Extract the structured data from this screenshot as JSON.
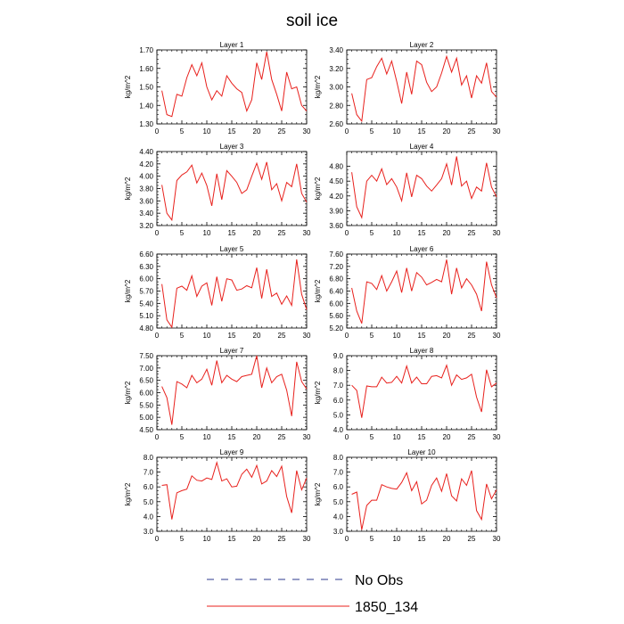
{
  "figure": {
    "title": "soil ice",
    "legend": [
      {
        "label": "No Obs",
        "color": "#2b3a8c",
        "dash": true
      },
      {
        "label": "1850_134",
        "color": "#e8201c",
        "dash": false
      }
    ]
  },
  "chart_data": [
    {
      "type": "line",
      "title": "Layer 1",
      "ylabel": "kg/m^2",
      "xlim": [
        0,
        30
      ],
      "xticks": [
        0,
        5,
        10,
        15,
        20,
        25,
        30
      ],
      "ylim": [
        1.3,
        1.7
      ],
      "yticks": [
        "1.30",
        "1.40",
        "1.50",
        "1.60",
        "1.70"
      ],
      "series": [
        {
          "color": "#e8201c",
          "x": [
            1,
            2,
            3,
            4,
            5,
            6,
            7,
            8,
            9,
            10,
            11,
            12,
            13,
            14,
            15,
            16,
            17,
            18,
            19,
            20,
            21,
            22,
            23,
            24,
            25,
            26,
            27,
            28,
            29,
            30
          ],
          "values": [
            1.48,
            1.35,
            1.34,
            1.46,
            1.45,
            1.55,
            1.62,
            1.56,
            1.63,
            1.5,
            1.43,
            1.48,
            1.45,
            1.56,
            1.52,
            1.49,
            1.47,
            1.37,
            1.43,
            1.63,
            1.54,
            1.69,
            1.54,
            1.46,
            1.37,
            1.58,
            1.49,
            1.5,
            1.4,
            1.37
          ]
        }
      ]
    },
    {
      "type": "line",
      "title": "Layer 2",
      "ylabel": "kg/m^2",
      "xlim": [
        0,
        30
      ],
      "xticks": [
        0,
        5,
        10,
        15,
        20,
        25,
        30
      ],
      "ylim": [
        2.6,
        3.4
      ],
      "yticks": [
        "2.60",
        "2.80",
        "3.00",
        "3.20",
        "3.40"
      ],
      "series": [
        {
          "color": "#e8201c",
          "x": [
            1,
            2,
            3,
            4,
            5,
            6,
            7,
            8,
            9,
            10,
            11,
            12,
            13,
            14,
            15,
            16,
            17,
            18,
            19,
            20,
            21,
            22,
            23,
            24,
            25,
            26,
            27,
            28,
            29,
            30
          ],
          "values": [
            2.93,
            2.7,
            2.63,
            3.08,
            3.1,
            3.22,
            3.31,
            3.14,
            3.28,
            3.06,
            2.82,
            3.16,
            2.92,
            3.28,
            3.24,
            3.05,
            2.95,
            3.0,
            3.15,
            3.33,
            3.16,
            3.31,
            3.02,
            3.12,
            2.88,
            3.12,
            3.04,
            3.26,
            2.95,
            2.89
          ]
        }
      ]
    },
    {
      "type": "line",
      "title": "Layer 3",
      "ylabel": "kg/m^2",
      "xlim": [
        0,
        30
      ],
      "xticks": [
        0,
        5,
        10,
        15,
        20,
        25,
        30
      ],
      "ylim": [
        3.2,
        4.4
      ],
      "yticks": [
        "3.20",
        "3.40",
        "3.60",
        "3.80",
        "4.00",
        "4.20",
        "4.40"
      ],
      "series": [
        {
          "color": "#e8201c",
          "x": [
            1,
            2,
            3,
            4,
            5,
            6,
            7,
            8,
            9,
            10,
            11,
            12,
            13,
            14,
            15,
            16,
            17,
            18,
            19,
            20,
            21,
            22,
            23,
            24,
            25,
            26,
            27,
            28,
            29,
            30
          ],
          "values": [
            3.86,
            3.4,
            3.29,
            3.93,
            4.02,
            4.07,
            4.18,
            3.89,
            4.05,
            3.85,
            3.52,
            4.04,
            3.62,
            4.09,
            4.0,
            3.9,
            3.72,
            3.78,
            4.0,
            4.21,
            3.95,
            4.23,
            3.78,
            3.88,
            3.6,
            3.9,
            3.83,
            4.2,
            3.72,
            3.58
          ]
        }
      ]
    },
    {
      "type": "line",
      "title": "Layer 4",
      "ylabel": "kg/m^2",
      "xlim": [
        0,
        30
      ],
      "xticks": [
        0,
        5,
        10,
        15,
        20,
        25,
        30
      ],
      "ylim": [
        3.6,
        5.1
      ],
      "yticks": [
        "3.60",
        "3.90",
        "4.20",
        "4.50",
        "4.80"
      ],
      "series": [
        {
          "color": "#e8201c",
          "x": [
            1,
            2,
            3,
            4,
            5,
            6,
            7,
            8,
            9,
            10,
            11,
            12,
            13,
            14,
            15,
            16,
            17,
            18,
            19,
            20,
            21,
            22,
            23,
            24,
            25,
            26,
            27,
            28,
            29,
            30
          ],
          "values": [
            4.68,
            3.98,
            3.76,
            4.5,
            4.62,
            4.5,
            4.75,
            4.43,
            4.55,
            4.38,
            4.1,
            4.67,
            4.18,
            4.62,
            4.55,
            4.4,
            4.3,
            4.42,
            4.55,
            4.85,
            4.42,
            5.0,
            4.4,
            4.5,
            4.15,
            4.38,
            4.3,
            4.87,
            4.38,
            4.18
          ]
        }
      ]
    },
    {
      "type": "line",
      "title": "Layer 5",
      "ylabel": "kg/m^2",
      "xlim": [
        0,
        30
      ],
      "xticks": [
        0,
        5,
        10,
        15,
        20,
        25,
        30
      ],
      "ylim": [
        4.8,
        6.6
      ],
      "yticks": [
        "4.80",
        "5.10",
        "5.40",
        "5.70",
        "6.00",
        "6.30",
        "6.60"
      ],
      "series": [
        {
          "color": "#e8201c",
          "x": [
            1,
            2,
            3,
            4,
            5,
            6,
            7,
            8,
            9,
            10,
            11,
            12,
            13,
            14,
            15,
            16,
            17,
            18,
            19,
            20,
            21,
            22,
            23,
            24,
            25,
            26,
            27,
            28,
            29,
            30
          ],
          "values": [
            5.87,
            5.0,
            4.82,
            5.77,
            5.82,
            5.72,
            6.07,
            5.57,
            5.82,
            5.9,
            5.35,
            6.05,
            5.45,
            6.0,
            5.97,
            5.72,
            5.75,
            5.83,
            5.78,
            6.27,
            5.52,
            6.23,
            5.57,
            5.65,
            5.38,
            5.58,
            5.35,
            6.47,
            5.62,
            5.25
          ]
        }
      ]
    },
    {
      "type": "line",
      "title": "Layer 6",
      "ylabel": "kg/m^2",
      "xlim": [
        0,
        30
      ],
      "xticks": [
        0,
        5,
        10,
        15,
        20,
        25,
        30
      ],
      "ylim": [
        5.2,
        7.6
      ],
      "yticks": [
        "5.20",
        "5.60",
        "6.00",
        "6.40",
        "6.80",
        "7.20",
        "7.60"
      ],
      "series": [
        {
          "color": "#e8201c",
          "x": [
            1,
            2,
            3,
            4,
            5,
            6,
            7,
            8,
            9,
            10,
            11,
            12,
            13,
            14,
            15,
            16,
            17,
            18,
            19,
            20,
            21,
            22,
            23,
            24,
            25,
            26,
            27,
            28,
            29,
            30
          ],
          "values": [
            6.5,
            5.75,
            5.35,
            6.7,
            6.65,
            6.45,
            6.9,
            6.4,
            6.7,
            7.05,
            6.35,
            7.15,
            6.4,
            7.0,
            6.85,
            6.6,
            6.68,
            6.78,
            6.7,
            7.42,
            6.3,
            7.15,
            6.5,
            6.8,
            6.6,
            6.3,
            5.75,
            7.35,
            6.6,
            6.18
          ]
        }
      ]
    },
    {
      "type": "line",
      "title": "Layer 7",
      "ylabel": "kg/m^2",
      "xlim": [
        0,
        30
      ],
      "xticks": [
        0,
        5,
        10,
        15,
        20,
        25,
        30
      ],
      "ylim": [
        4.5,
        7.5
      ],
      "yticks": [
        "4.50",
        "5.00",
        "5.50",
        "6.00",
        "6.50",
        "7.00",
        "7.50"
      ],
      "series": [
        {
          "color": "#e8201c",
          "x": [
            1,
            2,
            3,
            4,
            5,
            6,
            7,
            8,
            9,
            10,
            11,
            12,
            13,
            14,
            15,
            16,
            17,
            18,
            19,
            20,
            21,
            22,
            23,
            24,
            25,
            26,
            27,
            28,
            29,
            30
          ],
          "values": [
            6.25,
            5.8,
            4.7,
            6.45,
            6.35,
            6.2,
            6.7,
            6.4,
            6.55,
            6.95,
            6.3,
            7.3,
            6.4,
            6.7,
            6.55,
            6.45,
            6.65,
            6.7,
            6.75,
            7.5,
            6.2,
            7.0,
            6.4,
            6.65,
            6.75,
            6.1,
            5.05,
            7.25,
            6.45,
            6.15
          ]
        }
      ]
    },
    {
      "type": "line",
      "title": "Layer 8",
      "ylabel": "kg/m^2",
      "xlim": [
        0,
        30
      ],
      "xticks": [
        0,
        5,
        10,
        15,
        20,
        25,
        30
      ],
      "ylim": [
        4.0,
        9.0
      ],
      "yticks": [
        "4.0",
        "5.0",
        "6.0",
        "7.0",
        "8.0",
        "9.0"
      ],
      "series": [
        {
          "color": "#e8201c",
          "x": [
            1,
            2,
            3,
            4,
            5,
            6,
            7,
            8,
            9,
            10,
            11,
            12,
            13,
            14,
            15,
            16,
            17,
            18,
            19,
            20,
            21,
            22,
            23,
            24,
            25,
            26,
            27,
            28,
            29,
            30
          ],
          "values": [
            7.0,
            6.65,
            4.8,
            6.95,
            6.9,
            6.9,
            7.55,
            7.15,
            7.2,
            7.6,
            7.15,
            8.3,
            7.15,
            7.55,
            7.1,
            7.1,
            7.6,
            7.65,
            7.5,
            8.35,
            7.0,
            7.7,
            7.4,
            7.5,
            7.75,
            6.2,
            5.2,
            8.05,
            6.9,
            7.15
          ]
        }
      ]
    },
    {
      "type": "line",
      "title": "Layer 9",
      "ylabel": "kg/m^2",
      "xlim": [
        0,
        30
      ],
      "xticks": [
        0,
        5,
        10,
        15,
        20,
        25,
        30
      ],
      "ylim": [
        3.0,
        8.0
      ],
      "yticks": [
        "3.0",
        "4.0",
        "5.0",
        "6.0",
        "7.0",
        "8.0"
      ],
      "series": [
        {
          "color": "#e8201c",
          "x": [
            1,
            2,
            3,
            4,
            5,
            6,
            7,
            8,
            9,
            10,
            11,
            12,
            13,
            14,
            15,
            16,
            17,
            18,
            19,
            20,
            21,
            22,
            23,
            24,
            25,
            26,
            27,
            28,
            29,
            30
          ],
          "values": [
            6.1,
            6.15,
            3.8,
            5.6,
            5.75,
            5.85,
            6.75,
            6.45,
            6.4,
            6.6,
            6.5,
            7.65,
            6.4,
            6.55,
            6.0,
            6.05,
            6.85,
            7.2,
            6.65,
            7.45,
            6.2,
            6.4,
            7.1,
            6.7,
            7.4,
            5.35,
            4.25,
            7.1,
            5.8,
            6.6
          ]
        }
      ]
    },
    {
      "type": "line",
      "title": "Layer 10",
      "ylabel": "kg/m^2",
      "xlim": [
        0,
        30
      ],
      "xticks": [
        0,
        5,
        10,
        15,
        20,
        25,
        30
      ],
      "ylim": [
        3.0,
        8.0
      ],
      "yticks": [
        "3.0",
        "4.0",
        "5.0",
        "6.0",
        "7.0",
        "8.0"
      ],
      "series": [
        {
          "color": "#e8201c",
          "x": [
            1,
            2,
            3,
            4,
            5,
            6,
            7,
            8,
            9,
            10,
            11,
            12,
            13,
            14,
            15,
            16,
            17,
            18,
            19,
            20,
            21,
            22,
            23,
            24,
            25,
            26,
            27,
            28,
            29,
            30
          ],
          "values": [
            5.5,
            5.65,
            3.1,
            4.75,
            5.1,
            5.1,
            6.15,
            6.0,
            5.9,
            5.85,
            6.3,
            6.95,
            5.75,
            6.35,
            4.85,
            5.1,
            6.1,
            6.6,
            5.7,
            6.9,
            5.4,
            5.05,
            6.55,
            6.1,
            7.1,
            4.4,
            3.8,
            6.2,
            5.2,
            5.8
          ]
        }
      ]
    }
  ]
}
